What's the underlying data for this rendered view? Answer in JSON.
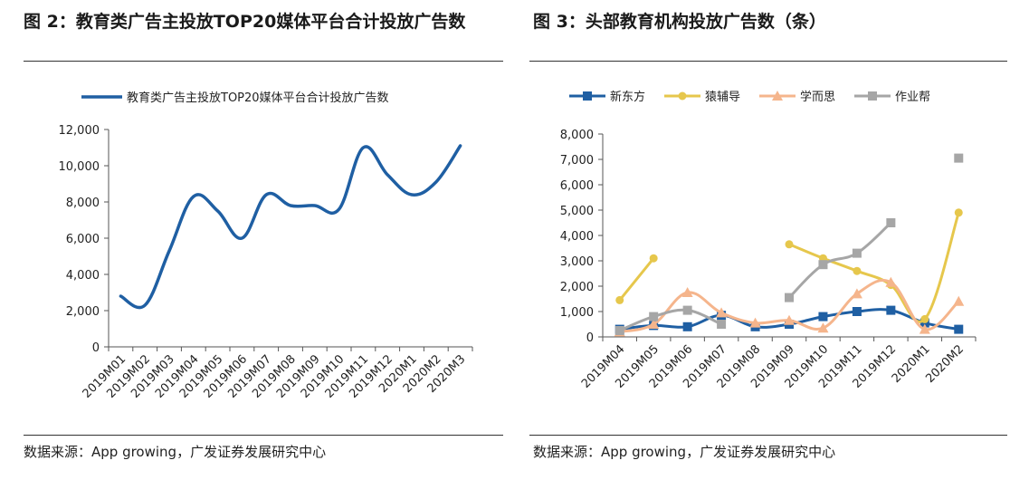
{
  "figures": [
    {
      "title": "图 2：教育类广告主投放TOP20媒体平台合计投放广告数",
      "source": "数据来源：App growing，广发证券发展研究中心"
    },
    {
      "title": "图 3：头部教育机构投放广告数（条）",
      "source": "数据来源：App growing，广发证券发展研究中心"
    }
  ],
  "chart_data": [
    {
      "type": "line",
      "title": "图 2：教育类广告主投放TOP20媒体平台合计投放广告数",
      "categories": [
        "2019M01",
        "2019M02",
        "2019M03",
        "2019M04",
        "2019M05",
        "2019M06",
        "2019M07",
        "2019M08",
        "2019M09",
        "2019M10",
        "2019M11",
        "2019M12",
        "2020M1",
        "2020M2",
        "2020M3"
      ],
      "series": [
        {
          "name": "教育类广告主投放TOP20媒体平台合计投放广告数",
          "color": "#1f5fa3",
          "values": [
            2800,
            2300,
            5300,
            8300,
            7500,
            6000,
            8400,
            7800,
            7800,
            7600,
            11000,
            9500,
            8400,
            9100,
            11100
          ]
        }
      ],
      "yticks": [
        "0",
        "2,000",
        "4,000",
        "6,000",
        "8,000",
        "10,000",
        "12,000"
      ],
      "ylim": [
        0,
        12000
      ],
      "legend": "top",
      "grid": false
    },
    {
      "type": "line",
      "title": "图 3：头部教育机构投放广告数（条）",
      "categories": [
        "2019M04",
        "2019M05",
        "2019M06",
        "2019M07",
        "2019M08",
        "2019M09",
        "2019M10",
        "2019M11",
        "2019M12",
        "2020M1",
        "2020M2"
      ],
      "series": [
        {
          "name": "新东方",
          "color": "#1f5fa3",
          "marker": "square",
          "values": [
            300,
            450,
            400,
            850,
            400,
            500,
            800,
            1000,
            1050,
            550,
            300
          ]
        },
        {
          "name": "猿辅导",
          "color": "#e6c74c",
          "marker": "circle",
          "values": [
            1450,
            3100,
            null,
            null,
            null,
            3650,
            3100,
            2600,
            2050,
            700,
            4900
          ]
        },
        {
          "name": "学而思",
          "color": "#f5b58c",
          "marker": "triangle",
          "values": [
            200,
            500,
            1750,
            950,
            550,
            650,
            350,
            1700,
            2150,
            300,
            1400
          ]
        },
        {
          "name": "作业帮",
          "color": "#a6a6a6",
          "marker": "square",
          "values": [
            250,
            800,
            1050,
            500,
            null,
            1550,
            2850,
            3300,
            4500,
            null,
            7050
          ]
        }
      ],
      "yticks": [
        "0",
        "1,000",
        "2,000",
        "3,000",
        "4,000",
        "5,000",
        "6,000",
        "7,000",
        "8,000"
      ],
      "ylim": [
        0,
        8000
      ],
      "legend": "top",
      "grid": false
    }
  ]
}
